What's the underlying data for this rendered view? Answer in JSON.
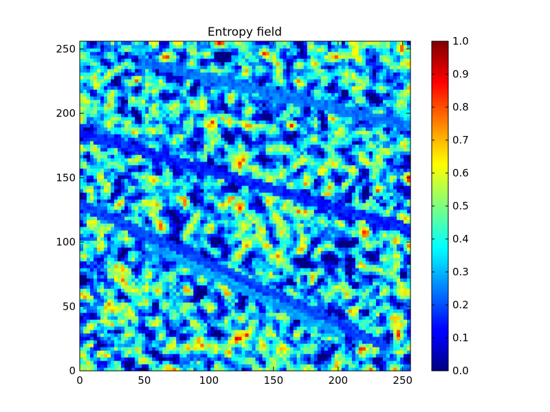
{
  "chart_data": {
    "type": "heatmap",
    "title": "Entropy field",
    "xlabel": "",
    "ylabel": "",
    "xlim": [
      0,
      256
    ],
    "ylim": [
      0,
      256
    ],
    "x_ticks": [
      0,
      50,
      100,
      150,
      200,
      250
    ],
    "y_ticks": [
      0,
      50,
      100,
      150,
      200,
      250
    ],
    "colormap": "jet",
    "value_range": [
      0.0,
      1.0
    ],
    "colorbar_ticks": [
      "0.0",
      "0.1",
      "0.2",
      "0.3",
      "0.4",
      "0.5",
      "0.6",
      "0.7",
      "0.8",
      "0.9",
      "1.0"
    ],
    "grid": false,
    "legend": "colorbar-right",
    "field_description": "noisy 256x256 scalar field, mostly 0.1-0.6, with diagonal low-value streaks running from upper-left to lower-right",
    "streaks": [
      {
        "x_start": 0,
        "y_start": 185,
        "x_end": 256,
        "y_end": 110,
        "value": 0.12
      },
      {
        "x_start": 0,
        "y_start": 130,
        "x_end": 235,
        "y_end": 20,
        "value": 0.15
      },
      {
        "x_start": 50,
        "y_start": 240,
        "x_end": 256,
        "y_end": 190,
        "value": 0.2
      },
      {
        "x_start": 60,
        "y_start": 95,
        "x_end": 200,
        "y_end": 30,
        "value": 0.25
      }
    ]
  },
  "colors": {
    "frame": "#000000",
    "background": "#ffffff"
  }
}
